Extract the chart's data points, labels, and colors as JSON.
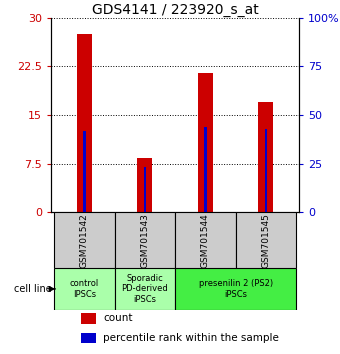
{
  "title": "GDS4141 / 223920_s_at",
  "samples": [
    "GSM701542",
    "GSM701543",
    "GSM701544",
    "GSM701545"
  ],
  "count_values": [
    27.5,
    8.3,
    21.5,
    17.0
  ],
  "percentile_values": [
    42.0,
    23.0,
    44.0,
    43.0
  ],
  "count_color": "#cc0000",
  "percentile_color": "#0000cc",
  "count_bar_width": 0.25,
  "pct_bar_width": 0.04,
  "ylim_left": [
    0,
    30
  ],
  "ylim_right": [
    0,
    100
  ],
  "yticks_left": [
    0,
    7.5,
    15,
    22.5,
    30
  ],
  "ytick_labels_left": [
    "0",
    "7.5",
    "15",
    "22.5",
    "30"
  ],
  "yticks_right": [
    0,
    25,
    50,
    75,
    100
  ],
  "ytick_labels_right": [
    "0",
    "25",
    "50",
    "75",
    "100%"
  ],
  "title_fontsize": 10,
  "axis_label_color_left": "#cc0000",
  "axis_label_color_right": "#0000cc",
  "group_info": [
    {
      "start": 0,
      "end": 0,
      "color": "#aaffaa",
      "label": "control\nIPSCs"
    },
    {
      "start": 1,
      "end": 1,
      "color": "#aaffaa",
      "label": "Sporadic\nPD-derived\niPSCs"
    },
    {
      "start": 2,
      "end": 3,
      "color": "#44ee44",
      "label": "presenilin 2 (PS2)\niPSCs"
    }
  ],
  "gray": "#cccccc",
  "legend_count": "count",
  "legend_percentile": "percentile rank within the sample",
  "cell_line_label": "cell line"
}
